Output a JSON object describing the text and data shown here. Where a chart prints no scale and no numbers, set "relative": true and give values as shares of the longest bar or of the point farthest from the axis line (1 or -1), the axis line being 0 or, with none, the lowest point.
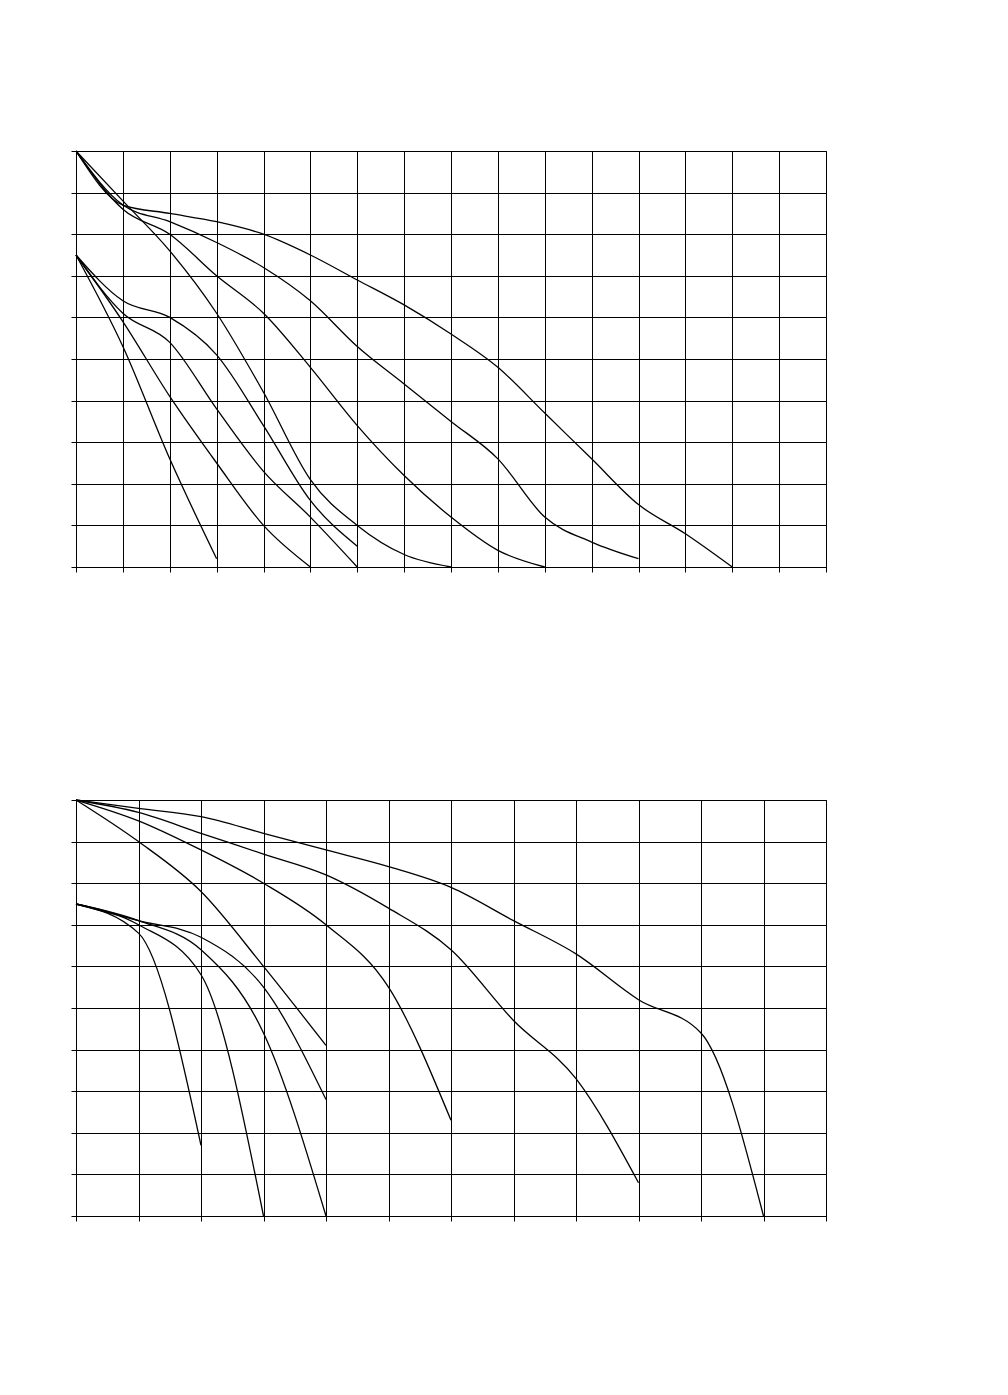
{
  "chart_data": [
    {
      "type": "line",
      "relative": true,
      "grid": true,
      "tick_labels": false,
      "categories": [
        null,
        null,
        null,
        null,
        null,
        null,
        null,
        null,
        null,
        null,
        null,
        null,
        null,
        null,
        null,
        null,
        null
      ],
      "series": [
        {
          "color": "#000000",
          "values": [
            1,
            0.87,
            0.85,
            0.83,
            0.8,
            0.75,
            0.69,
            0.63,
            0.56,
            0.48,
            0.37,
            0.26,
            0.15,
            0.08,
            0,
            null,
            null
          ]
        },
        {
          "color": "#000000",
          "values": [
            1,
            0.87,
            0.83,
            0.78,
            0.72,
            0.64,
            0.53,
            0.44,
            0.35,
            0.26,
            0.12,
            0.06,
            0.02,
            null,
            null,
            null,
            null
          ]
        },
        {
          "color": "#000000",
          "values": [
            1,
            0.86,
            0.8,
            0.7,
            0.61,
            0.48,
            0.34,
            0.22,
            0.12,
            0.04,
            0,
            null,
            null,
            null,
            null,
            null,
            null
          ]
        },
        {
          "color": "#000000",
          "values": [
            1,
            0.88,
            0.76,
            0.61,
            0.42,
            0.21,
            0.1,
            0.03,
            0,
            null,
            null,
            null,
            null,
            null,
            null,
            null,
            null
          ]
        },
        {
          "color": "#000000",
          "values": [
            0.75,
            0.64,
            0.6,
            0.51,
            0.34,
            0.16,
            0.05,
            null,
            null,
            null,
            null,
            null,
            null,
            null,
            null,
            null,
            null
          ]
        },
        {
          "color": "#000000",
          "values": [
            0.75,
            0.61,
            0.54,
            0.38,
            0.23,
            0.12,
            0,
            null,
            null,
            null,
            null,
            null,
            null,
            null,
            null,
            null,
            null
          ]
        },
        {
          "color": "#000000",
          "values": [
            0.75,
            0.59,
            0.41,
            0.25,
            0.1,
            0,
            null,
            null,
            null,
            null,
            null,
            null,
            null,
            null,
            null,
            null,
            null
          ]
        },
        {
          "color": "#000000",
          "values": [
            0.75,
            0.53,
            0.26,
            0.02,
            null,
            null,
            null,
            null,
            null,
            null,
            null,
            null,
            null,
            null,
            null,
            null,
            null
          ]
        }
      ]
    },
    {
      "type": "line",
      "relative": true,
      "grid": true,
      "tick_labels": false,
      "categories": [
        null,
        null,
        null,
        null,
        null,
        null,
        null,
        null,
        null,
        null,
        null,
        null,
        null
      ],
      "series": [
        {
          "color": "#000000",
          "values": [
            1,
            0.98,
            0.96,
            0.92,
            0.88,
            0.84,
            0.79,
            0.71,
            0.63,
            0.52,
            0.44,
            0,
            null
          ]
        },
        {
          "color": "#000000",
          "values": [
            1,
            0.97,
            0.92,
            0.87,
            0.82,
            0.74,
            0.64,
            0.47,
            0.33,
            0.08,
            null,
            null,
            null
          ]
        },
        {
          "color": "#000000",
          "values": [
            1,
            0.95,
            0.88,
            0.8,
            0.7,
            0.55,
            0.23,
            null,
            null,
            null,
            null,
            null,
            null
          ]
        },
        {
          "color": "#000000",
          "values": [
            1,
            0.9,
            0.78,
            0.6,
            0.41,
            null,
            null,
            null,
            null,
            null,
            null,
            null,
            null
          ]
        },
        {
          "color": "#000000",
          "values": [
            0.75,
            0.71,
            0.67,
            0.55,
            0.28,
            null,
            null,
            null,
            null,
            null,
            null,
            null,
            null
          ]
        },
        {
          "color": "#000000",
          "values": [
            0.75,
            0.71,
            0.64,
            0.44,
            0,
            null,
            null,
            null,
            null,
            null,
            null,
            null,
            null
          ]
        },
        {
          "color": "#000000",
          "values": [
            0.75,
            0.7,
            0.58,
            0,
            null,
            null,
            null,
            null,
            null,
            null,
            null,
            null,
            null
          ]
        },
        {
          "color": "#000000",
          "values": [
            0.75,
            0.68,
            0.17,
            null,
            null,
            null,
            null,
            null,
            null,
            null,
            null,
            null,
            null
          ]
        }
      ]
    }
  ]
}
